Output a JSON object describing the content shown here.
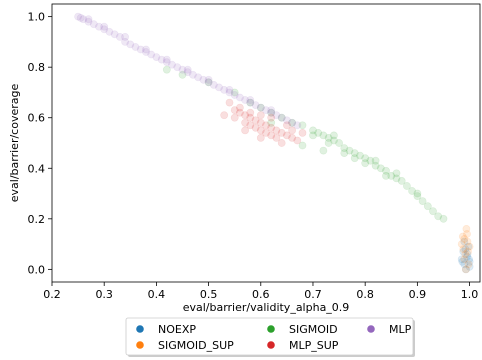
{
  "chart_data": {
    "type": "scatter",
    "title": "",
    "xlabel": "eval/barrier/validity_alpha_0.9",
    "ylabel": "eval/barrier/coverage",
    "xlim": [
      0.2,
      1.02
    ],
    "ylim": [
      -0.05,
      1.05
    ],
    "xticks": [
      0.2,
      0.3,
      0.4,
      0.5,
      0.6,
      0.7,
      0.8,
      0.9,
      1.0
    ],
    "xtick_labels": [
      "0.2",
      "0.3",
      "0.4",
      "0.5",
      "0.6",
      "0.7",
      "0.8",
      "0.9",
      "1.0"
    ],
    "yticks": [
      0.0,
      0.2,
      0.4,
      0.6,
      0.8,
      1.0
    ],
    "ytick_labels": [
      "0.0",
      "0.2",
      "0.4",
      "0.6",
      "0.8",
      "1.0"
    ],
    "grid": false,
    "legend_placement": "bottom-center",
    "legend_columns": 3,
    "point_alpha": 0.15,
    "series": [
      {
        "name": "NOEXP",
        "color": "#1f77b4",
        "points": [
          [
            0.985,
            0.04
          ],
          [
            0.99,
            0.02
          ],
          [
            0.995,
            0.05
          ],
          [
            1.0,
            0.03
          ],
          [
            0.988,
            0.07
          ],
          [
            0.993,
            0.0
          ],
          [
            0.998,
            0.09
          ],
          [
            0.99,
            0.11
          ],
          [
            0.996,
            0.06
          ],
          [
            1.0,
            0.01
          ],
          [
            0.986,
            0.03
          ],
          [
            0.992,
            0.08
          ],
          [
            0.999,
            0.04
          ]
        ]
      },
      {
        "name": "SIGMOID",
        "color": "#2ca02c",
        "points": [
          [
            0.55,
            0.7
          ],
          [
            0.58,
            0.66
          ],
          [
            0.6,
            0.64
          ],
          [
            0.62,
            0.62
          ],
          [
            0.64,
            0.6
          ],
          [
            0.66,
            0.58
          ],
          [
            0.68,
            0.57
          ],
          [
            0.7,
            0.55
          ],
          [
            0.71,
            0.54
          ],
          [
            0.72,
            0.53
          ],
          [
            0.73,
            0.52
          ],
          [
            0.74,
            0.51
          ],
          [
            0.75,
            0.5
          ],
          [
            0.76,
            0.48
          ],
          [
            0.77,
            0.47
          ],
          [
            0.78,
            0.46
          ],
          [
            0.79,
            0.45
          ],
          [
            0.8,
            0.44
          ],
          [
            0.81,
            0.43
          ],
          [
            0.82,
            0.41
          ],
          [
            0.83,
            0.4
          ],
          [
            0.84,
            0.39
          ],
          [
            0.85,
            0.37
          ],
          [
            0.86,
            0.36
          ],
          [
            0.87,
            0.35
          ],
          [
            0.88,
            0.33
          ],
          [
            0.89,
            0.31
          ],
          [
            0.9,
            0.29
          ],
          [
            0.91,
            0.27
          ],
          [
            0.92,
            0.25
          ],
          [
            0.93,
            0.23
          ],
          [
            0.94,
            0.21
          ],
          [
            0.95,
            0.2
          ],
          [
            0.7,
            0.53
          ],
          [
            0.73,
            0.5
          ],
          [
            0.76,
            0.46
          ],
          [
            0.78,
            0.44
          ],
          [
            0.68,
            0.49
          ],
          [
            0.72,
            0.47
          ],
          [
            0.86,
            0.38
          ],
          [
            0.9,
            0.3
          ],
          [
            0.84,
            0.37
          ],
          [
            0.62,
            0.58
          ],
          [
            0.82,
            0.43
          ],
          [
            0.74,
            0.53
          ],
          [
            0.5,
            0.74
          ],
          [
            0.45,
            0.77
          ],
          [
            0.42,
            0.79
          ],
          [
            0.8,
            0.42
          ]
        ]
      },
      {
        "name": "MLP",
        "color": "#9467bd",
        "points": [
          [
            0.25,
            1.0
          ],
          [
            0.255,
            0.995
          ],
          [
            0.26,
            0.99
          ],
          [
            0.27,
            0.98
          ],
          [
            0.28,
            0.97
          ],
          [
            0.29,
            0.96
          ],
          [
            0.3,
            0.95
          ],
          [
            0.31,
            0.94
          ],
          [
            0.32,
            0.93
          ],
          [
            0.33,
            0.92
          ],
          [
            0.34,
            0.9
          ],
          [
            0.35,
            0.89
          ],
          [
            0.36,
            0.88
          ],
          [
            0.37,
            0.87
          ],
          [
            0.38,
            0.86
          ],
          [
            0.39,
            0.85
          ],
          [
            0.4,
            0.84
          ],
          [
            0.41,
            0.83
          ],
          [
            0.42,
            0.82
          ],
          [
            0.43,
            0.81
          ],
          [
            0.44,
            0.8
          ],
          [
            0.45,
            0.79
          ],
          [
            0.46,
            0.78
          ],
          [
            0.47,
            0.77
          ],
          [
            0.48,
            0.76
          ],
          [
            0.49,
            0.75
          ],
          [
            0.5,
            0.74
          ],
          [
            0.51,
            0.73
          ],
          [
            0.52,
            0.72
          ],
          [
            0.53,
            0.71
          ],
          [
            0.54,
            0.7
          ],
          [
            0.55,
            0.69
          ],
          [
            0.56,
            0.68
          ],
          [
            0.57,
            0.67
          ],
          [
            0.58,
            0.66
          ],
          [
            0.59,
            0.65
          ],
          [
            0.6,
            0.64
          ],
          [
            0.61,
            0.63
          ],
          [
            0.62,
            0.62
          ],
          [
            0.63,
            0.61
          ],
          [
            0.64,
            0.6
          ],
          [
            0.65,
            0.59
          ],
          [
            0.66,
            0.58
          ],
          [
            0.67,
            0.57
          ],
          [
            0.27,
            0.99
          ],
          [
            0.3,
            0.96
          ],
          [
            0.34,
            0.92
          ],
          [
            0.38,
            0.87
          ],
          [
            0.42,
            0.83
          ],
          [
            0.46,
            0.79
          ],
          [
            0.5,
            0.75
          ],
          [
            0.54,
            0.71
          ],
          [
            0.58,
            0.67
          ],
          [
            0.62,
            0.63
          ]
        ]
      },
      {
        "name": "SIGMOID_SUP",
        "color": "#ff7f0e",
        "points": [
          [
            0.985,
            0.1
          ],
          [
            0.99,
            0.12
          ],
          [
            0.995,
            0.14
          ],
          [
            0.988,
            0.08
          ],
          [
            0.992,
            0.06
          ],
          [
            0.996,
            0.11
          ],
          [
            0.99,
            0.04
          ],
          [
            0.994,
            0.16
          ],
          [
            0.998,
            0.02
          ],
          [
            1.0,
            0.09
          ],
          [
            0.987,
            0.13
          ],
          [
            0.993,
            0.0
          ],
          [
            0.997,
            0.07
          ]
        ]
      },
      {
        "name": "MLP_SUP",
        "color": "#d62728",
        "points": [
          [
            0.55,
            0.63
          ],
          [
            0.56,
            0.62
          ],
          [
            0.57,
            0.61
          ],
          [
            0.58,
            0.6
          ],
          [
            0.59,
            0.59
          ],
          [
            0.6,
            0.58
          ],
          [
            0.61,
            0.57
          ],
          [
            0.62,
            0.56
          ],
          [
            0.63,
            0.55
          ],
          [
            0.64,
            0.54
          ],
          [
            0.65,
            0.53
          ],
          [
            0.66,
            0.52
          ],
          [
            0.57,
            0.58
          ],
          [
            0.59,
            0.56
          ],
          [
            0.61,
            0.54
          ],
          [
            0.63,
            0.52
          ],
          [
            0.6,
            0.55
          ],
          [
            0.62,
            0.53
          ],
          [
            0.58,
            0.57
          ],
          [
            0.64,
            0.5
          ],
          [
            0.66,
            0.55
          ],
          [
            0.68,
            0.54
          ],
          [
            0.54,
            0.66
          ],
          [
            0.56,
            0.64
          ],
          [
            0.58,
            0.62
          ],
          [
            0.6,
            0.61
          ],
          [
            0.62,
            0.6
          ],
          [
            0.55,
            0.6
          ],
          [
            0.57,
            0.55
          ],
          [
            0.6,
            0.52
          ],
          [
            0.65,
            0.57
          ],
          [
            0.67,
            0.51
          ],
          [
            0.53,
            0.61
          ]
        ]
      }
    ],
    "legend": [
      {
        "name": "NOEXP",
        "color": "#1f77b4"
      },
      {
        "name": "SIGMOID",
        "color": "#2ca02c"
      },
      {
        "name": "MLP",
        "color": "#9467bd"
      },
      {
        "name": "SIGMOID_SUP",
        "color": "#ff7f0e"
      },
      {
        "name": "MLP_SUP",
        "color": "#d62728"
      }
    ]
  }
}
